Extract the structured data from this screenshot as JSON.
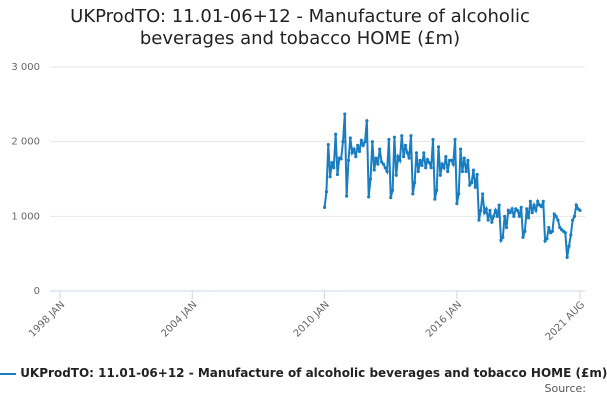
{
  "chart_data": {
    "type": "line",
    "title": "UKProdTO: 11.01-06+12 - Manufacture of alcoholic beverages and tobacco HOME (£m)",
    "source_label": "Source:",
    "x": [
      "2010 JAN",
      "2010 FEB",
      "2010 MAR",
      "2010 APR",
      "2010 MAY",
      "2010 JUN",
      "2010 JUL",
      "2010 AUG",
      "2010 SEP",
      "2010 OCT",
      "2010 NOV",
      "2010 DEC",
      "2011 JAN",
      "2011 FEB",
      "2011 MAR",
      "2011 APR",
      "2011 MAY",
      "2011 JUN",
      "2011 JUL",
      "2011 AUG",
      "2011 SEP",
      "2011 OCT",
      "2011 NOV",
      "2011 DEC",
      "2012 JAN",
      "2012 FEB",
      "2012 MAR",
      "2012 APR",
      "2012 MAY",
      "2012 JUN",
      "2012 JUL",
      "2012 AUG",
      "2012 SEP",
      "2012 OCT",
      "2012 NOV",
      "2012 DEC",
      "2013 JAN",
      "2013 FEB",
      "2013 MAR",
      "2013 APR",
      "2013 MAY",
      "2013 JUN",
      "2013 JUL",
      "2013 AUG",
      "2013 SEP",
      "2013 OCT",
      "2013 NOV",
      "2013 DEC",
      "2014 JAN",
      "2014 FEB",
      "2014 MAR",
      "2014 APR",
      "2014 MAY",
      "2014 JUN",
      "2014 JUL",
      "2014 AUG",
      "2014 SEP",
      "2014 OCT",
      "2014 NOV",
      "2014 DEC",
      "2015 JAN",
      "2015 FEB",
      "2015 MAR",
      "2015 APR",
      "2015 MAY",
      "2015 JUN",
      "2015 JUL",
      "2015 AUG",
      "2015 SEP",
      "2015 OCT",
      "2015 NOV",
      "2015 DEC",
      "2016 JAN",
      "2016 FEB",
      "2016 MAR",
      "2016 APR",
      "2016 MAY",
      "2016 JUN",
      "2016 JUL",
      "2016 AUG",
      "2016 SEP",
      "2016 OCT",
      "2016 NOV",
      "2016 DEC",
      "2017 JAN",
      "2017 FEB",
      "2017 MAR",
      "2017 APR",
      "2017 MAY",
      "2017 JUN",
      "2017 JUL",
      "2017 AUG",
      "2017 SEP",
      "2017 OCT",
      "2017 NOV",
      "2017 DEC",
      "2018 JAN",
      "2018 FEB",
      "2018 MAR",
      "2018 APR",
      "2018 MAY",
      "2018 JUN",
      "2018 JUL",
      "2018 AUG",
      "2018 SEP",
      "2018 OCT",
      "2018 NOV",
      "2018 DEC",
      "2019 JAN",
      "2019 FEB",
      "2019 MAR",
      "2019 APR",
      "2019 MAY",
      "2019 JUN",
      "2019 JUL",
      "2019 AUG",
      "2019 SEP",
      "2019 OCT",
      "2019 NOV",
      "2019 DEC",
      "2020 JAN",
      "2020 FEB",
      "2020 MAR",
      "2020 APR",
      "2020 MAY",
      "2020 JUN",
      "2020 JUL",
      "2020 AUG",
      "2020 SEP",
      "2020 OCT",
      "2020 NOV",
      "2020 DEC",
      "2021 JAN",
      "2021 FEB",
      "2021 MAR",
      "2021 APR",
      "2021 MAY",
      "2021 JUN",
      "2021 JUL",
      "2021 AUG"
    ],
    "series": [
      {
        "name": "UKProdTO: 11.01-06+12 - Manufacture of alcoholic beverages and tobacco HOME (£m)",
        "color": "#1a7dc0",
        "values": [
          1120,
          1330,
          1960,
          1530,
          1720,
          1650,
          2100,
          1560,
          1780,
          1770,
          2000,
          2370,
          1270,
          1750,
          2050,
          1850,
          1900,
          1800,
          1950,
          1870,
          2020,
          1950,
          2000,
          2280,
          1260,
          1500,
          2000,
          1620,
          1780,
          1700,
          1900,
          1730,
          1700,
          1650,
          1600,
          2030,
          1250,
          1350,
          2060,
          1550,
          1800,
          1750,
          2080,
          1800,
          1950,
          1850,
          1780,
          2080,
          1300,
          1450,
          1850,
          1600,
          1750,
          1680,
          1850,
          1650,
          1760,
          1720,
          1650,
          2030,
          1230,
          1350,
          1930,
          1550,
          1700,
          1650,
          1800,
          1600,
          1750,
          1750,
          1700,
          2030,
          1170,
          1300,
          1900,
          1600,
          1780,
          1600,
          1750,
          1420,
          1450,
          1620,
          1390,
          1560,
          950,
          1080,
          1300,
          1050,
          1100,
          950,
          1080,
          920,
          1000,
          1080,
          1000,
          1150,
          680,
          720,
          1000,
          850,
          1080,
          1050,
          1100,
          1000,
          1100,
          1080,
          1000,
          1120,
          720,
          800,
          1100,
          980,
          1200,
          1050,
          1150,
          1080,
          1200,
          1150,
          1130,
          1200,
          670,
          700,
          850,
          780,
          800,
          1030,
          1000,
          950,
          850,
          820,
          800,
          780,
          450,
          600,
          750,
          950,
          1000,
          1150,
          1100,
          1080
        ]
      }
    ],
    "xlim": [
      "1998 JAN",
      "2021 AUG"
    ],
    "xticks": [
      "1998 JAN",
      "2004 JAN",
      "2010 JAN",
      "2016 JAN",
      "2021 AUG"
    ],
    "ylim": [
      0,
      3000
    ],
    "yticks": [
      0,
      {
        "value": 1000,
        "label": "1 000"
      },
      {
        "value": 2000,
        "label": "2 000"
      },
      {
        "value": 3000,
        "label": "3 000"
      }
    ],
    "grid": true
  }
}
